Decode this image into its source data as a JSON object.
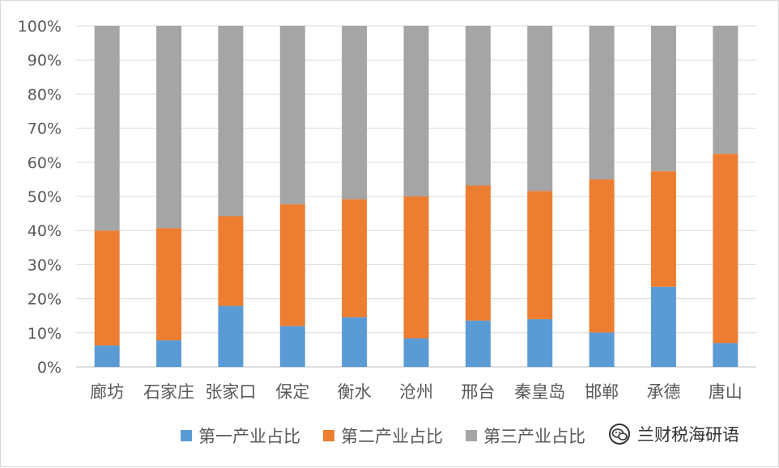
{
  "chart_data": {
    "type": "bar",
    "stacked": true,
    "percent": true,
    "categories": [
      "廊坊",
      "石家庄",
      "张家口",
      "保定",
      "衡水",
      "沧州",
      "邢台",
      "秦皇岛",
      "邯郸",
      "承德",
      "唐山"
    ],
    "series": [
      {
        "name": "第一产业占比",
        "color": "#5b9bd5",
        "values": [
          6.3,
          7.8,
          17.9,
          12.0,
          14.6,
          8.4,
          13.6,
          14.0,
          10.1,
          23.5,
          7.0
        ]
      },
      {
        "name": "第二产业占比",
        "color": "#ed7d31",
        "values": [
          33.7,
          32.9,
          26.3,
          35.7,
          34.6,
          41.6,
          39.6,
          37.6,
          44.9,
          33.9,
          55.5
        ]
      },
      {
        "name": "第三产业占比",
        "color": "#a5a5a5",
        "values": [
          60.0,
          59.3,
          55.8,
          52.3,
          50.8,
          50.0,
          46.8,
          48.4,
          45.0,
          42.6,
          37.5
        ]
      }
    ],
    "y_ticks": [
      "0%",
      "10%",
      "20%",
      "30%",
      "40%",
      "50%",
      "60%",
      "70%",
      "80%",
      "90%",
      "100%"
    ],
    "ylim": [
      0,
      100
    ],
    "grid": true,
    "legend": "bottom"
  },
  "watermark": {
    "icon": "wechat-icon",
    "text": "兰财税海研语"
  }
}
